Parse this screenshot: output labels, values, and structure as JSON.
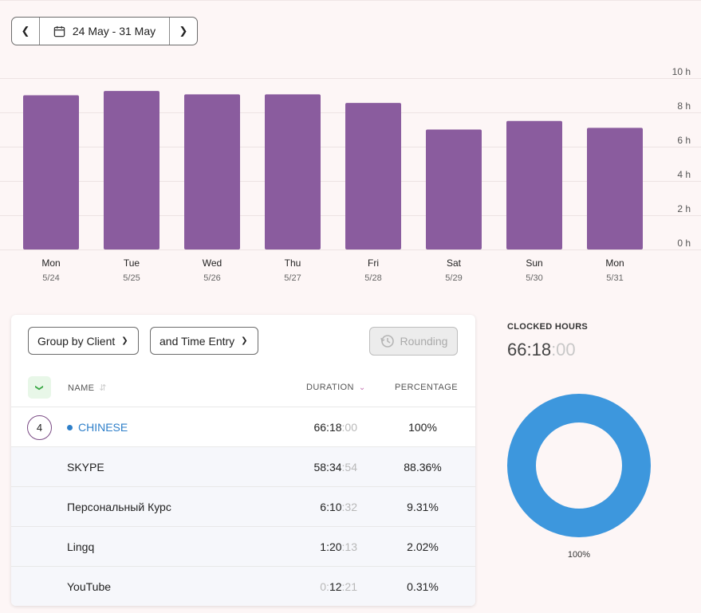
{
  "date_range": {
    "label": "24 May - 31 May",
    "prev_icon": "chevron-left-icon",
    "next_icon": "chevron-right-icon",
    "calendar_icon": "calendar-icon"
  },
  "chart_data": {
    "type": "bar",
    "categories": [
      "Mon",
      "Tue",
      "Wed",
      "Thu",
      "Fri",
      "Sat",
      "Sun",
      "Mon"
    ],
    "dates": [
      "5/24",
      "5/25",
      "5/26",
      "5/27",
      "5/28",
      "5/29",
      "5/30",
      "5/31"
    ],
    "values": [
      9.0,
      9.25,
      9.05,
      9.05,
      8.55,
      7.0,
      7.5,
      7.1
    ],
    "ylim": [
      0,
      10
    ],
    "yticks": [
      "0 h",
      "2 h",
      "4 h",
      "6 h",
      "8 h",
      "10 h"
    ],
    "bar_color": "#8a5c9e",
    "grid": true
  },
  "filters": {
    "group_by": "Group by Client",
    "sub_group": "and Time Entry",
    "rounding": "Rounding"
  },
  "table": {
    "headers": {
      "name": "NAME",
      "duration": "DURATION",
      "percentage": "PERCENTAGE"
    },
    "client": {
      "count": "4",
      "name": "CHINESE",
      "dot_color": "#2e7fc9",
      "duration_main": "66:18",
      "duration_dim": ":00",
      "percentage": "100%"
    },
    "entries": [
      {
        "name": "SKYPE",
        "dur_pre": "",
        "duration_main": "58:34",
        "duration_dim": ":54",
        "percentage": "88.36%"
      },
      {
        "name": "Персональный Курс",
        "dur_pre": "",
        "duration_main": "6:10",
        "duration_dim": ":32",
        "percentage": "9.31%"
      },
      {
        "name": "Lingq",
        "dur_pre": "",
        "duration_main": "1:20",
        "duration_dim": ":13",
        "percentage": "2.02%"
      },
      {
        "name": "YouTube",
        "dur_pre": "0:",
        "duration_main": "12",
        "duration_dim": ":21",
        "percentage": "0.31%"
      }
    ]
  },
  "summary": {
    "label": "CLOCKED HOURS",
    "value_main": "66:18",
    "value_dim": ":00",
    "donut_percent": 100,
    "donut_label": "100%",
    "donut_color": "#3d97dd"
  }
}
